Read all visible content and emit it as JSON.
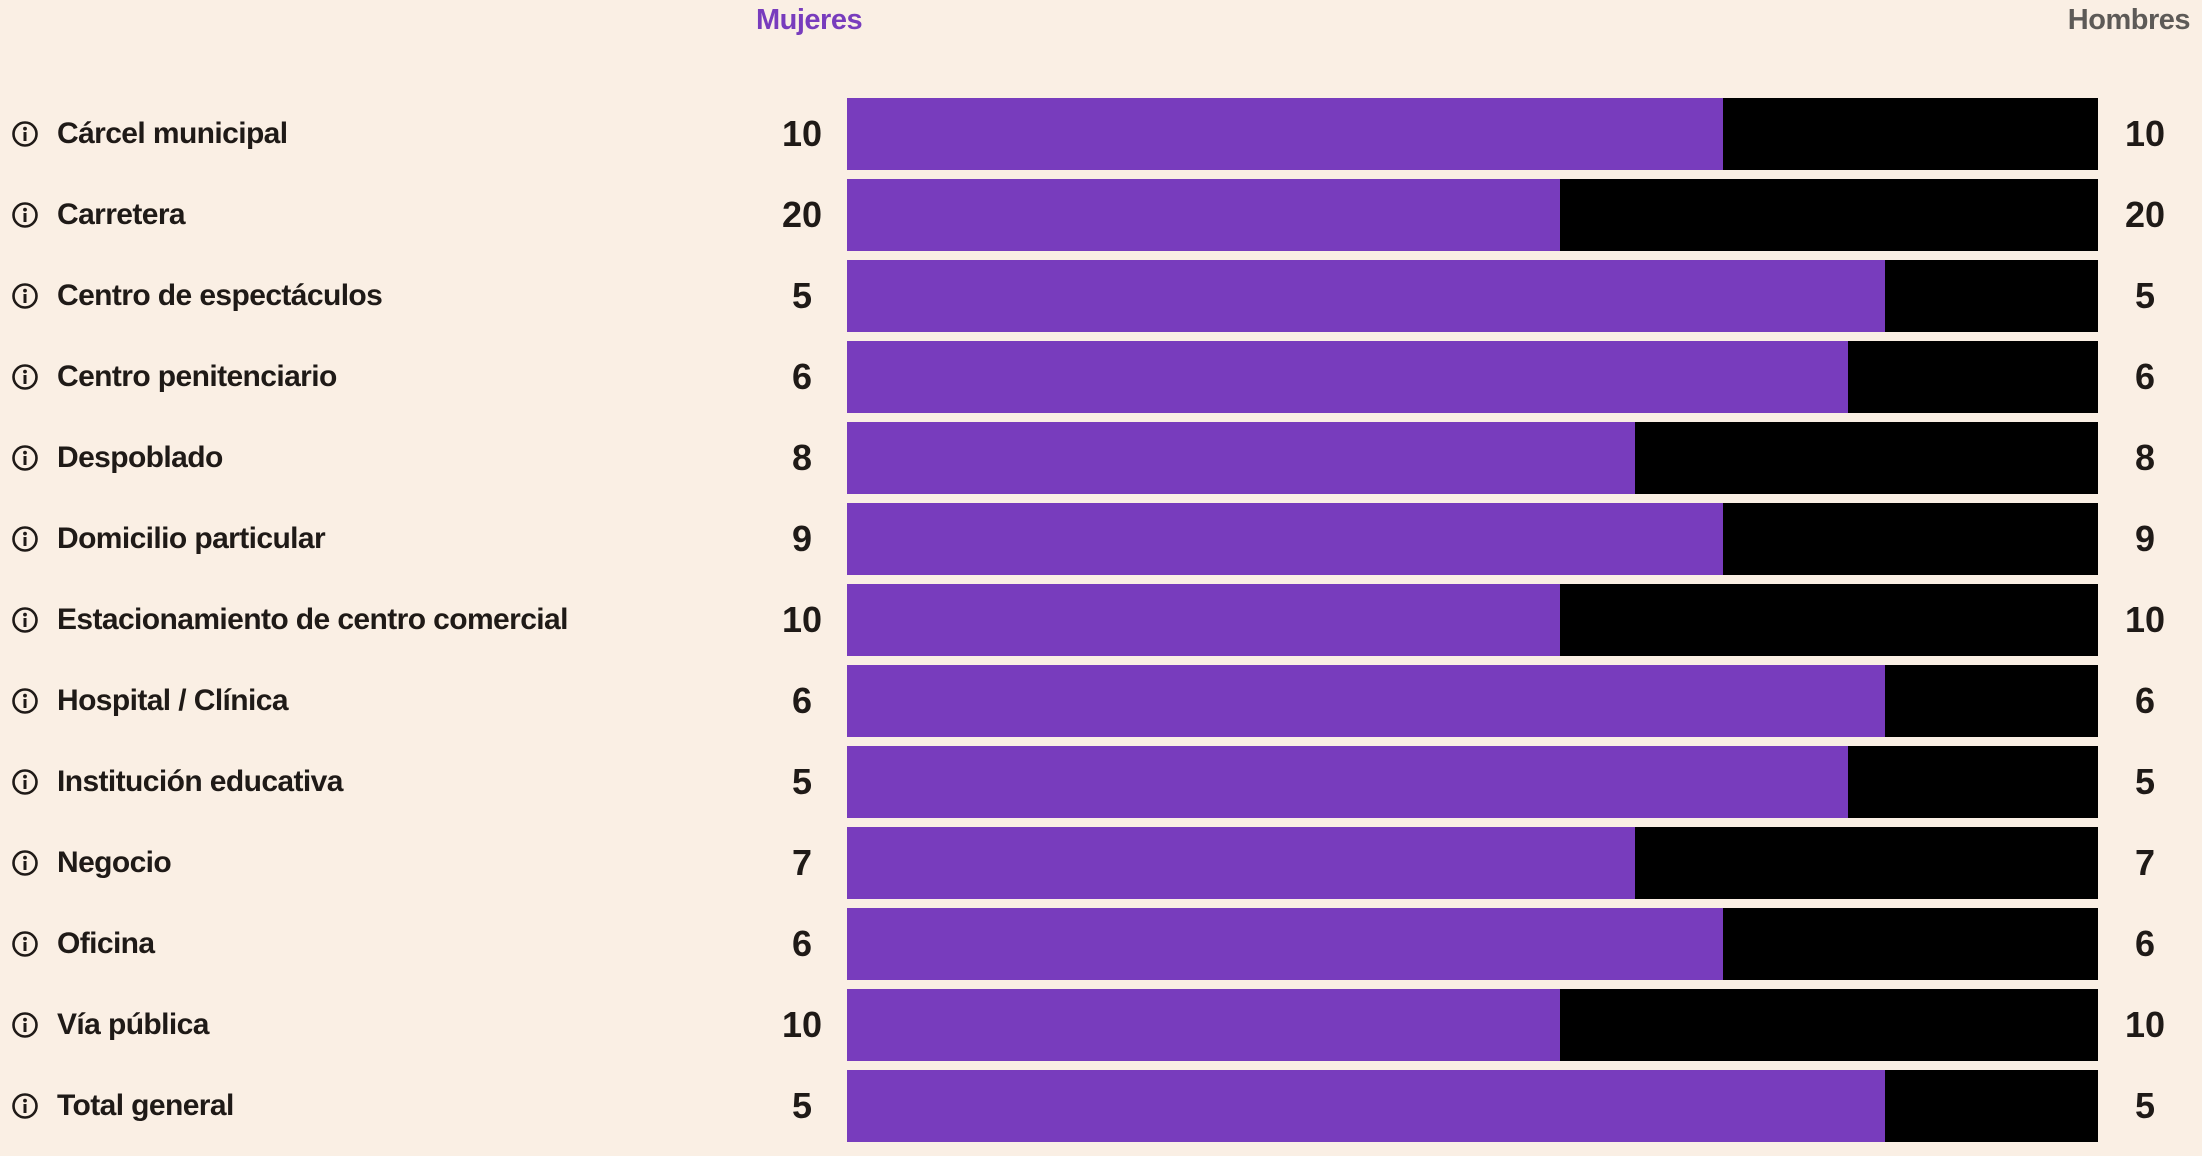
{
  "legend": {
    "women": "Mujeres",
    "men": "Hombres"
  },
  "colors": {
    "women": "#783cbd",
    "men": "#000000",
    "background": "#faefe4"
  },
  "chart_data": {
    "type": "bar",
    "orientation": "horizontal",
    "stacked": "percent",
    "categories": [
      "Cárcel municipal",
      "Carretera",
      "Centro de espectáculos",
      "Centro penitenciario",
      "Despoblado",
      "Domicilio particular",
      "Estacionamiento de centro comercial",
      "Hospital / Clínica",
      "Institución educativa",
      "Negocio",
      "Oficina",
      "Vía pública",
      "Total general"
    ],
    "left_labels": [
      "10",
      "20",
      "5",
      "6",
      "8",
      "9",
      "10",
      "6",
      "5",
      "7",
      "6",
      "10",
      "5"
    ],
    "right_labels": [
      "10",
      "20",
      "5",
      "6",
      "8",
      "9",
      "10",
      "6",
      "5",
      "7",
      "6",
      "10",
      "5"
    ],
    "series": [
      {
        "name": "Mujeres",
        "values": [
          70,
          57,
          83,
          80,
          63,
          70,
          57,
          83,
          80,
          63,
          70,
          57,
          83
        ]
      },
      {
        "name": "Hombres",
        "values": [
          30,
          43,
          17,
          20,
          37,
          30,
          43,
          17,
          20,
          37,
          30,
          43,
          17
        ]
      }
    ],
    "icon": "info-icon",
    "grid": false,
    "legend_placement": "top"
  }
}
